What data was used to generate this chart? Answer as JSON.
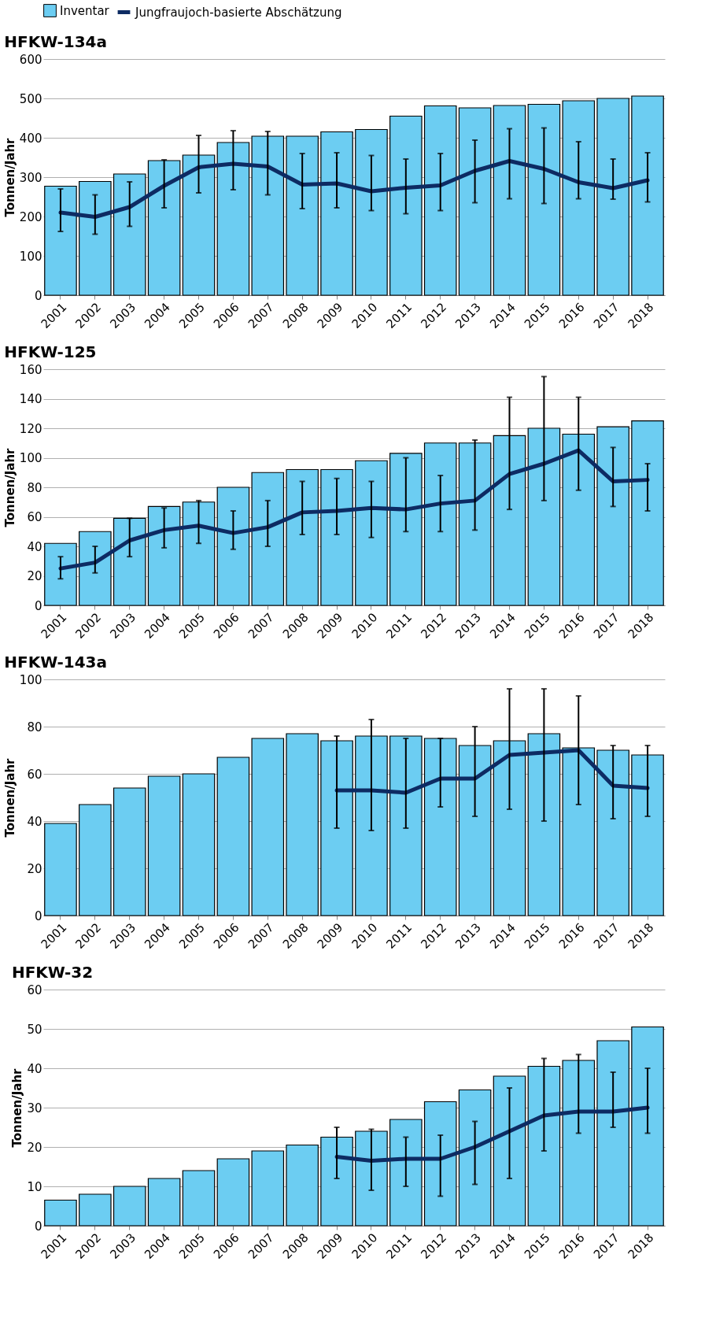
{
  "chart_data": [
    {
      "type": "bar",
      "title": "HFKW-134a",
      "ylabel": "Tonnen/Jahr",
      "categories": [
        "2001",
        "2002",
        "2003",
        "2004",
        "2005",
        "2006",
        "2007",
        "2008",
        "2009",
        "2010",
        "2011",
        "2012",
        "2013",
        "2014",
        "2015",
        "2016",
        "2017",
        "2018"
      ],
      "ylim": [
        0,
        600
      ],
      "yticks": [
        0,
        100,
        200,
        300,
        400,
        500,
        600
      ],
      "grid": "y",
      "legend": "top",
      "series": [
        {
          "name": "Inventar",
          "type": "bar",
          "color": "#6ccdf2",
          "values": [
            277,
            289,
            308,
            342,
            356,
            388,
            404,
            404,
            415,
            421,
            455,
            481,
            476,
            482,
            485,
            494,
            500,
            506
          ]
        },
        {
          "name": "Jungfraujoch-basierte Abschätzung",
          "type": "line",
          "color": "#0d2b63",
          "values": [
            210,
            199,
            224,
            278,
            325,
            334,
            327,
            281,
            284,
            264,
            273,
            279,
            316,
            341,
            321,
            287,
            272,
            292
          ],
          "errors": [
            [
              162,
              270
            ],
            [
              155,
              255
            ],
            [
              175,
              288
            ],
            [
              222,
              344
            ],
            [
              260,
              406
            ],
            [
              268,
              418
            ],
            [
              255,
              416
            ],
            [
              220,
              360
            ],
            [
              222,
              362
            ],
            [
              215,
              355
            ],
            [
              207,
              346
            ],
            [
              215,
              360
            ],
            [
              235,
              394
            ],
            [
              245,
              423
            ],
            [
              233,
              425
            ],
            [
              245,
              390
            ],
            [
              244,
              346
            ],
            [
              237,
              362
            ]
          ]
        }
      ]
    },
    {
      "type": "bar",
      "title": "HFKW-125",
      "ylabel": "Tonnen/Jahr",
      "categories": [
        "2001",
        "2002",
        "2003",
        "2004",
        "2005",
        "2006",
        "2007",
        "2008",
        "2009",
        "2010",
        "2011",
        "2012",
        "2013",
        "2014",
        "2015",
        "2016",
        "2017",
        "2018"
      ],
      "ylim": [
        0,
        160
      ],
      "yticks": [
        0,
        20,
        40,
        60,
        80,
        100,
        120,
        140,
        160
      ],
      "grid": "y",
      "series": [
        {
          "type": "bar",
          "color": "#6ccdf2",
          "values": [
            42,
            50,
            59,
            67,
            70,
            80,
            90,
            92,
            92,
            98,
            103,
            110,
            110,
            115,
            120,
            116,
            121,
            125
          ]
        },
        {
          "type": "line",
          "color": "#0d2b63",
          "values": [
            25,
            29,
            44,
            51,
            54,
            49,
            53,
            63,
            64,
            66,
            65,
            69,
            71,
            89,
            96,
            105,
            84,
            85
          ],
          "errors": [
            [
              18,
              33
            ],
            [
              22,
              40
            ],
            [
              33,
              59
            ],
            [
              39,
              66
            ],
            [
              42,
              71
            ],
            [
              38,
              64
            ],
            [
              40,
              71
            ],
            [
              48,
              84
            ],
            [
              48,
              86
            ],
            [
              46,
              84
            ],
            [
              50,
              100
            ],
            [
              50,
              88
            ],
            [
              51,
              112
            ],
            [
              65,
              141
            ],
            [
              71,
              155
            ],
            [
              78,
              141
            ],
            [
              67,
              107
            ],
            [
              64,
              96
            ]
          ]
        }
      ]
    },
    {
      "type": "bar",
      "title": "HFKW-143a",
      "ylabel": "Tonnen/Jahr",
      "categories": [
        "2001",
        "2002",
        "2003",
        "2004",
        "2005",
        "2006",
        "2007",
        "2008",
        "2009",
        "2010",
        "2011",
        "2012",
        "2013",
        "2014",
        "2015",
        "2016",
        "2017",
        "2018"
      ],
      "ylim": [
        0,
        100
      ],
      "yticks": [
        0,
        20,
        40,
        60,
        80,
        100
      ],
      "grid": "y",
      "series": [
        {
          "type": "bar",
          "color": "#6ccdf2",
          "values": [
            39,
            47,
            54,
            59,
            60,
            67,
            75,
            77,
            74,
            76,
            76,
            75,
            72,
            74,
            77,
            71,
            70,
            68
          ]
        },
        {
          "type": "line",
          "color": "#0d2b63",
          "values": [
            null,
            null,
            null,
            null,
            null,
            null,
            null,
            null,
            53,
            53,
            52,
            58,
            58,
            68,
            69,
            70,
            55,
            54
          ],
          "errors": [
            null,
            null,
            null,
            null,
            null,
            null,
            null,
            null,
            [
              37,
              76
            ],
            [
              36,
              83
            ],
            [
              37,
              75
            ],
            [
              46,
              75
            ],
            [
              42,
              80
            ],
            [
              45,
              96
            ],
            [
              40,
              96
            ],
            [
              47,
              93
            ],
            [
              41,
              72
            ],
            [
              42,
              72
            ]
          ]
        }
      ]
    },
    {
      "type": "bar",
      "title": "HFKW-32",
      "ylabel": "Tonnen/Jahr",
      "categories": [
        "2001",
        "2002",
        "2003",
        "2004",
        "2005",
        "2006",
        "2007",
        "2008",
        "2009",
        "2010",
        "2011",
        "2012",
        "2013",
        "2014",
        "2015",
        "2016",
        "2017",
        "2018"
      ],
      "ylim": [
        0,
        60
      ],
      "yticks": [
        0,
        10,
        20,
        30,
        40,
        50,
        60
      ],
      "grid": "y",
      "series": [
        {
          "type": "bar",
          "color": "#6ccdf2",
          "values": [
            6.5,
            8,
            10,
            12,
            14,
            17,
            19,
            20.5,
            22.5,
            24,
            27,
            31.5,
            34.5,
            38,
            40.5,
            42,
            47,
            50.5
          ]
        },
        {
          "type": "line",
          "color": "#0d2b63",
          "values": [
            null,
            null,
            null,
            null,
            null,
            null,
            null,
            null,
            17.5,
            16.5,
            17,
            17,
            20,
            24,
            28,
            29,
            29,
            30
          ],
          "errors": [
            null,
            null,
            null,
            null,
            null,
            null,
            null,
            null,
            [
              12,
              25
            ],
            [
              9,
              24.5
            ],
            [
              10,
              22.5
            ],
            [
              7.5,
              23
            ],
            [
              10.5,
              26.5
            ],
            [
              12,
              35
            ],
            [
              19,
              42.5
            ],
            [
              23.5,
              43.5
            ],
            [
              25,
              39
            ],
            [
              23.5,
              40
            ]
          ]
        }
      ]
    }
  ]
}
